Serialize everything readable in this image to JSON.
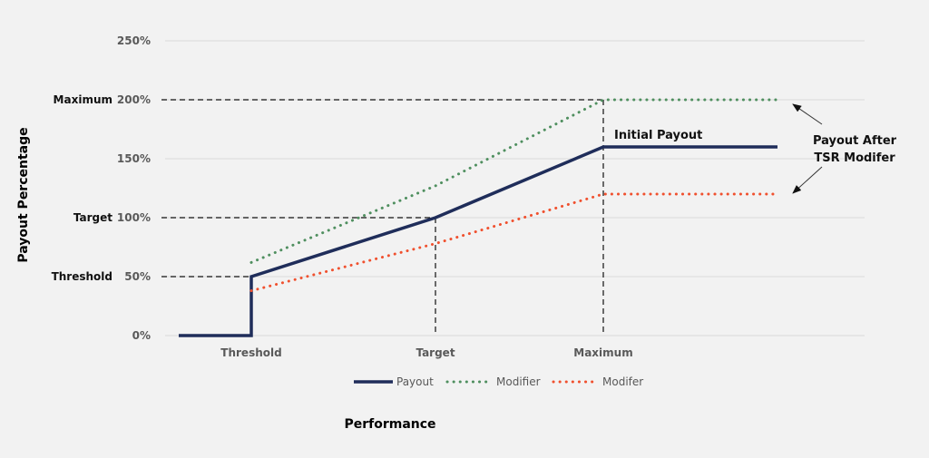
{
  "chart_data": {
    "type": "line",
    "title": "",
    "xlabel": "Performance",
    "ylabel": "Payout Percentage",
    "ylim": [
      0,
      250
    ],
    "y_ticks": [
      "0%",
      "50%",
      "100%",
      "150%",
      "200%",
      "250%"
    ],
    "y_tick_values": [
      0,
      50,
      100,
      150,
      200,
      250
    ],
    "x_categories": [
      "Threshold",
      "Target",
      "Maximum"
    ],
    "y_level_labels": [
      {
        "label": "Threshold",
        "value": 50
      },
      {
        "label": "Target",
        "value": 100
      },
      {
        "label": "Maximum",
        "value": 200
      }
    ],
    "grid": true,
    "legend_position": "bottom",
    "series": [
      {
        "name": "Payout",
        "style": "solid",
        "color": "#1f2d5a",
        "points": [
          [
            "start",
            0
          ],
          [
            "Threshold",
            0
          ],
          [
            "Threshold",
            50
          ],
          [
            "Target",
            100
          ],
          [
            "Maximum",
            160
          ],
          [
            "end",
            160
          ]
        ]
      },
      {
        "name": "Modifier",
        "style": "dotted",
        "color": "#4f8f5f",
        "points": [
          [
            "Threshold",
            62
          ],
          [
            "Target",
            127
          ],
          [
            "Maximum",
            200
          ],
          [
            "end",
            200
          ]
        ]
      },
      {
        "name": "Modifer",
        "style": "dotted",
        "color": "#f0502e",
        "points": [
          [
            "Threshold",
            38
          ],
          [
            "Target",
            78
          ],
          [
            "Maximum",
            120
          ],
          [
            "end",
            120
          ]
        ]
      }
    ],
    "annotations": [
      {
        "text": "Initial Payout",
        "target_series": "Payout"
      },
      {
        "text": "Payout After",
        "line2": "TSR Modifer",
        "arrows_to": [
          "Modifier",
          "Modifer"
        ]
      }
    ]
  }
}
